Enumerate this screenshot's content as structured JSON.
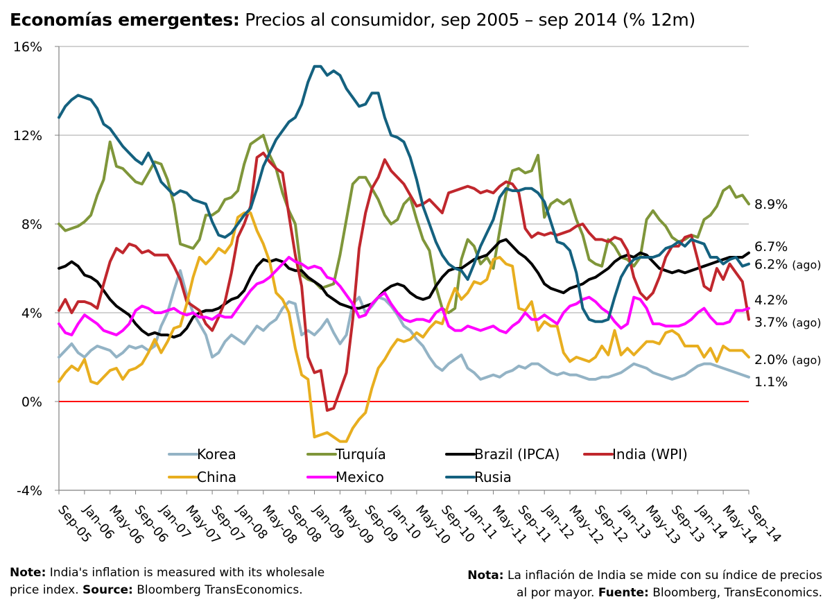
{
  "title": {
    "bold": "Economías emergentes:",
    "rest": " Precios al consumidor, sep 2005 – sep 2014 (% 12m)"
  },
  "notes": {
    "left_bold": "Note:",
    "left_line1": " India's inflation is measured with its wholesale",
    "left_line2": "price index. ",
    "left_bold2": "Source:",
    "left_line2_end": "  Bloomberg TransEconomics.",
    "right_bold": "Nota:",
    "right_line1": " La inflación de India se mide con su índice de precios",
    "right_line2": "al por mayor. ",
    "right_bold2": "Fuente:",
    "right_line2_end": "  Bloomberg, TransEconomics."
  },
  "chart_data": {
    "type": "line",
    "x_tick_labels": [
      "Sep-05",
      "Jan-06",
      "May-06",
      "Sep-06",
      "Jan-07",
      "May-07",
      "Sep-07",
      "Jan-08",
      "May-08",
      "Sep-08",
      "Jan-09",
      "May-09",
      "Sep-09",
      "Jan-10",
      "May-10",
      "Sep-10",
      "Jan-11",
      "May-11",
      "Sep-11",
      "Jan-12",
      "May-12",
      "Sep-12",
      "Jan-13",
      "May-13",
      "Sep-13",
      "Jan-14",
      "May-14",
      "Sep-14"
    ],
    "x_tick_month_index": [
      0,
      4,
      8,
      12,
      16,
      20,
      24,
      28,
      32,
      36,
      40,
      44,
      48,
      52,
      56,
      60,
      64,
      68,
      72,
      76,
      80,
      84,
      88,
      92,
      96,
      100,
      104,
      108
    ],
    "y_tick_labels": [
      "-4%",
      "0%",
      "4%",
      "8%",
      "12%",
      "16%"
    ],
    "y_tick_values": [
      -4,
      0,
      4,
      8,
      12,
      16
    ],
    "ylim": [
      -4,
      16
    ],
    "x_range_months": [
      0,
      108
    ],
    "reference_line": {
      "value": 0,
      "color": "#ff0000"
    },
    "grid": "horizontal",
    "legend_placement": "bottom-center",
    "series": [
      {
        "name": "Korea",
        "color": "#93b3c5",
        "values": [
          2.0,
          2.3,
          2.6,
          2.2,
          2.0,
          2.3,
          2.5,
          2.4,
          2.3,
          2.0,
          2.2,
          2.5,
          2.4,
          2.5,
          2.3,
          2.5,
          3.4,
          4.0,
          5.0,
          5.9,
          4.8,
          4.0,
          3.5,
          3.0,
          2.0,
          2.2,
          2.7,
          3.0,
          2.8,
          2.6,
          3.0,
          3.4,
          3.2,
          3.5,
          3.7,
          4.2,
          4.5,
          4.4,
          3.0,
          3.2,
          3.0,
          3.3,
          3.7,
          3.1,
          2.6,
          3.0,
          4.4,
          4.7,
          4.0,
          4.3,
          4.7,
          4.6,
          4.3,
          3.9,
          3.4,
          3.2,
          2.8,
          2.5,
          2.0,
          1.6,
          1.4,
          1.7,
          1.9,
          2.1,
          1.5,
          1.3,
          1.0,
          1.1,
          1.2,
          1.1,
          1.3,
          1.4,
          1.6,
          1.5,
          1.7,
          1.7,
          1.5,
          1.3,
          1.2,
          1.3,
          1.2,
          1.2,
          1.1,
          1.0,
          1.0,
          1.1,
          1.1,
          1.2,
          1.3,
          1.5,
          1.7,
          1.6,
          1.5,
          1.3,
          1.2,
          1.1,
          1.0,
          1.1,
          1.2,
          1.4,
          1.6,
          1.7,
          1.7,
          1.6,
          1.5,
          1.4,
          1.3,
          1.2,
          1.1
        ]
      },
      {
        "name": "Turquía",
        "color": "#7f963a",
        "values": [
          8.0,
          7.7,
          7.8,
          7.9,
          8.1,
          8.4,
          9.3,
          10.0,
          11.7,
          10.6,
          10.5,
          10.2,
          9.9,
          9.8,
          10.3,
          10.8,
          10.7,
          10.0,
          8.9,
          7.1,
          7.0,
          6.9,
          7.3,
          8.4,
          8.4,
          8.6,
          9.1,
          9.2,
          9.5,
          10.7,
          11.6,
          11.8,
          12.0,
          11.1,
          10.5,
          9.4,
          8.6,
          8.0,
          5.7,
          5.5,
          5.4,
          5.1,
          5.2,
          5.3,
          6.6,
          8.2,
          9.8,
          10.1,
          10.1,
          9.6,
          9.1,
          8.4,
          8.0,
          8.2,
          8.9,
          9.2,
          8.2,
          7.3,
          6.8,
          5.2,
          4.2,
          4.0,
          4.2,
          6.4,
          7.3,
          7.0,
          6.2,
          6.5,
          6.0,
          7.7,
          9.4,
          10.4,
          10.5,
          10.3,
          10.4,
          11.1,
          8.3,
          8.9,
          9.1,
          8.9,
          9.1,
          8.2,
          7.5,
          6.4,
          6.2,
          6.1,
          7.3,
          7.0,
          6.5,
          6.4,
          6.1,
          6.5,
          8.2,
          8.6,
          8.2,
          7.9,
          7.4,
          7.2,
          7.3,
          7.5,
          7.4,
          8.2,
          8.4,
          8.8,
          9.5,
          9.7,
          9.2,
          9.3,
          8.9
        ]
      },
      {
        "name": "Brazil (IPCA)",
        "color": "#000000",
        "values": [
          6.0,
          6.1,
          6.3,
          6.1,
          5.7,
          5.6,
          5.4,
          5.0,
          4.6,
          4.3,
          4.1,
          3.9,
          3.5,
          3.2,
          3.0,
          3.1,
          3.0,
          3.0,
          2.9,
          3.0,
          3.3,
          3.8,
          4.0,
          4.1,
          4.1,
          4.2,
          4.4,
          4.6,
          4.7,
          5.0,
          5.6,
          6.1,
          6.4,
          6.3,
          6.4,
          6.3,
          6.0,
          5.9,
          5.9,
          5.6,
          5.4,
          5.2,
          4.8,
          4.6,
          4.4,
          4.3,
          4.2,
          4.2,
          4.3,
          4.4,
          4.7,
          5.0,
          5.2,
          5.3,
          5.2,
          4.9,
          4.7,
          4.6,
          4.7,
          5.2,
          5.6,
          5.9,
          6.0,
          6.0,
          6.2,
          6.4,
          6.5,
          6.6,
          6.9,
          7.2,
          7.3,
          7.0,
          6.7,
          6.5,
          6.2,
          5.8,
          5.3,
          5.1,
          5.0,
          4.9,
          5.1,
          5.2,
          5.3,
          5.5,
          5.6,
          5.8,
          6.0,
          6.3,
          6.5,
          6.6,
          6.5,
          6.7,
          6.6,
          6.3,
          6.0,
          5.9,
          5.8,
          5.9,
          5.8,
          5.9,
          6.0,
          6.1,
          6.2,
          6.3,
          6.4,
          6.5,
          6.5,
          6.5,
          6.7
        ]
      },
      {
        "name": "India (WPI)",
        "color": "#c0272d",
        "values": [
          4.1,
          4.6,
          4.0,
          4.5,
          4.5,
          4.4,
          4.2,
          5.3,
          6.3,
          6.9,
          6.7,
          7.1,
          7.0,
          6.7,
          6.8,
          6.6,
          6.6,
          6.6,
          6.1,
          5.5,
          4.5,
          4.3,
          4.1,
          3.5,
          3.2,
          3.8,
          4.5,
          5.8,
          7.4,
          8.0,
          8.8,
          11.0,
          11.2,
          10.8,
          10.5,
          10.3,
          8.4,
          6.6,
          5.2,
          2.0,
          1.3,
          1.4,
          -0.4,
          -0.3,
          0.5,
          1.3,
          3.7,
          6.9,
          8.5,
          9.6,
          10.1,
          10.9,
          10.4,
          10.1,
          9.8,
          9.3,
          8.8,
          8.9,
          9.1,
          8.8,
          8.5,
          9.4,
          9.5,
          9.6,
          9.7,
          9.6,
          9.4,
          9.5,
          9.4,
          9.7,
          9.9,
          9.8,
          9.4,
          7.8,
          7.4,
          7.6,
          7.5,
          7.6,
          7.5,
          7.6,
          7.7,
          7.9,
          8.0,
          7.6,
          7.3,
          7.3,
          7.2,
          7.4,
          7.3,
          6.8,
          5.6,
          4.9,
          4.6,
          4.9,
          5.6,
          6.5,
          7.0,
          7.0,
          7.4,
          7.5,
          6.4,
          5.2,
          5.0,
          6.0,
          5.5,
          6.2,
          5.8,
          5.4,
          3.7
        ]
      },
      {
        "name": "China",
        "color": "#e8ae1f",
        "values": [
          0.9,
          1.3,
          1.6,
          1.4,
          1.9,
          0.9,
          0.8,
          1.1,
          1.4,
          1.5,
          1.0,
          1.4,
          1.5,
          1.7,
          2.2,
          2.8,
          2.2,
          2.7,
          3.3,
          3.4,
          4.4,
          5.6,
          6.5,
          6.2,
          6.5,
          6.9,
          6.7,
          7.1,
          8.3,
          8.5,
          8.5,
          7.7,
          7.1,
          6.3,
          4.9,
          4.6,
          4.0,
          2.4,
          1.2,
          1.0,
          -1.6,
          -1.5,
          -1.4,
          -1.6,
          -1.8,
          -1.8,
          -1.2,
          -0.8,
          -0.5,
          0.6,
          1.5,
          1.9,
          2.4,
          2.8,
          2.7,
          2.8,
          3.1,
          2.9,
          3.3,
          3.6,
          3.5,
          4.4,
          5.1,
          4.6,
          4.9,
          5.4,
          5.3,
          5.5,
          6.4,
          6.5,
          6.2,
          6.1,
          4.2,
          4.1,
          4.5,
          3.2,
          3.6,
          3.4,
          3.4,
          2.2,
          1.8,
          2.0,
          1.9,
          1.8,
          2.0,
          2.5,
          2.1,
          3.2,
          2.1,
          2.4,
          2.1,
          2.4,
          2.7,
          2.7,
          2.6,
          3.1,
          3.2,
          3.0,
          2.5,
          2.5,
          2.5,
          2.0,
          2.4,
          1.8,
          2.5,
          2.3,
          2.3,
          2.3,
          2.0
        ]
      },
      {
        "name": "Mexico",
        "color": "#ff00ff",
        "values": [
          3.5,
          3.1,
          3.0,
          3.5,
          3.9,
          3.7,
          3.5,
          3.2,
          3.1,
          3.0,
          3.2,
          3.5,
          4.1,
          4.3,
          4.2,
          4.0,
          4.0,
          4.1,
          4.2,
          4.0,
          3.9,
          4.0,
          3.8,
          3.8,
          3.7,
          3.9,
          3.8,
          3.8,
          4.2,
          4.6,
          5.0,
          5.3,
          5.4,
          5.6,
          5.9,
          6.2,
          6.5,
          6.3,
          6.2,
          6.0,
          6.1,
          6.0,
          5.6,
          5.5,
          5.2,
          4.8,
          4.4,
          3.8,
          3.9,
          4.4,
          4.7,
          4.9,
          4.4,
          4.0,
          3.7,
          3.6,
          3.7,
          3.7,
          3.6,
          4.0,
          4.2,
          3.4,
          3.2,
          3.2,
          3.4,
          3.3,
          3.2,
          3.3,
          3.4,
          3.2,
          3.1,
          3.4,
          3.6,
          4.0,
          3.7,
          3.7,
          3.9,
          3.7,
          3.5,
          4.0,
          4.3,
          4.4,
          4.6,
          4.7,
          4.5,
          4.2,
          4.0,
          3.6,
          3.3,
          3.5,
          4.7,
          4.6,
          4.2,
          3.5,
          3.5,
          3.4,
          3.4,
          3.4,
          3.5,
          3.7,
          4.0,
          4.2,
          3.8,
          3.5,
          3.5,
          3.6,
          4.1,
          4.1,
          4.2
        ]
      },
      {
        "name": "Rusia",
        "color": "#14617f",
        "values": [
          12.8,
          13.3,
          13.6,
          13.8,
          13.7,
          13.6,
          13.2,
          12.5,
          12.3,
          11.9,
          11.5,
          11.2,
          10.9,
          10.7,
          11.2,
          10.6,
          9.9,
          9.6,
          9.3,
          9.5,
          9.4,
          9.1,
          9.0,
          8.9,
          8.1,
          7.5,
          7.4,
          7.6,
          8.0,
          8.4,
          8.7,
          9.6,
          10.6,
          11.2,
          11.8,
          12.2,
          12.6,
          12.8,
          13.4,
          14.4,
          15.1,
          15.1,
          14.7,
          14.9,
          14.7,
          14.1,
          13.7,
          13.3,
          13.4,
          13.9,
          13.9,
          12.8,
          12.0,
          11.9,
          11.7,
          11.0,
          10.0,
          8.8,
          8.0,
          7.2,
          6.6,
          6.2,
          6.0,
          5.9,
          5.5,
          6.2,
          7.0,
          7.6,
          8.2,
          9.2,
          9.6,
          9.5,
          9.5,
          9.6,
          9.6,
          9.4,
          9.0,
          8.1,
          7.2,
          7.1,
          6.8,
          5.8,
          4.2,
          3.7,
          3.6,
          3.6,
          3.7,
          4.7,
          5.6,
          6.1,
          6.4,
          6.5,
          6.5,
          6.5,
          6.6,
          6.9,
          7.0,
          7.2,
          7.0,
          7.3,
          7.2,
          7.1,
          6.5,
          6.5,
          6.2,
          6.4,
          6.5,
          6.1,
          6.2
        ]
      }
    ],
    "end_labels": [
      {
        "text": "8.9%",
        "value": 8.9,
        "y_pos": 8.9
      },
      {
        "text": "6.7%",
        "value": 6.7,
        "y_pos": 7.0
      },
      {
        "text": "6.2% (ago)",
        "value": 6.2,
        "y_pos": 6.2
      },
      {
        "text": "4.2%",
        "value": 4.2,
        "y_pos": 4.6
      },
      {
        "text": "3.7% (ago)",
        "value": 3.7,
        "y_pos": 3.6
      },
      {
        "text": "2.0% (ago)",
        "value": 2.0,
        "y_pos": 1.9
      },
      {
        "text": "1.1%",
        "value": 1.1,
        "y_pos": 0.9
      }
    ],
    "legend": {
      "rows": [
        [
          "Korea",
          "Turquía",
          "Brazil (IPCA)",
          "India (WPI)"
        ],
        [
          "China",
          "Mexico",
          "Rusia"
        ]
      ]
    }
  }
}
